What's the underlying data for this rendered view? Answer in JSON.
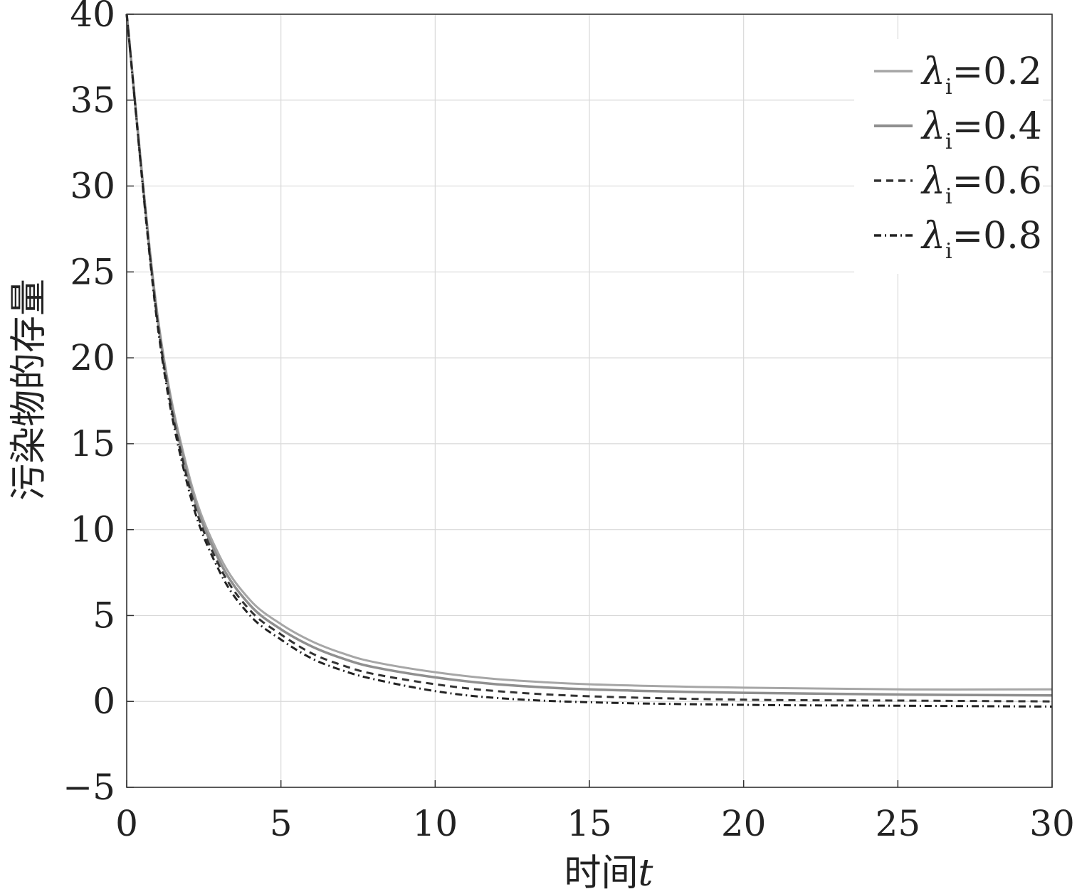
{
  "chart_data": {
    "type": "line",
    "xlabel_prefix": "时间",
    "xlabel_var": "t",
    "ylabel": "污染物的存量",
    "xlim": [
      0,
      30
    ],
    "ylim": [
      -5,
      40
    ],
    "xticks": [
      0,
      5,
      10,
      15,
      20,
      25,
      30
    ],
    "yticks": [
      -5,
      0,
      5,
      10,
      15,
      20,
      25,
      30,
      35,
      40
    ],
    "xtick_labels": [
      "0",
      "5",
      "10",
      "15",
      "20",
      "25",
      "30"
    ],
    "ytick_labels": [
      "−5",
      "0",
      "5",
      "10",
      "15",
      "20",
      "25",
      "30",
      "35",
      "40"
    ],
    "grid": true,
    "legend_position": "top-right",
    "x": [
      0,
      1,
      2,
      3,
      4,
      5,
      6,
      7,
      8,
      10,
      12,
      15,
      20,
      25,
      30
    ],
    "series": [
      {
        "name": "λi=0.2",
        "symbol": "λ",
        "subscript": "i",
        "value_text": "=0.2",
        "color": "#a6a6a6",
        "dash": "",
        "width": 3,
        "values": [
          40,
          22.5,
          13.3,
          8.5,
          5.9,
          4.5,
          3.5,
          2.8,
          2.3,
          1.7,
          1.3,
          1.0,
          0.8,
          0.7,
          0.7
        ]
      },
      {
        "name": "λi=0.4",
        "symbol": "λ",
        "subscript": "i",
        "value_text": "=0.4",
        "color": "#8f8f8f",
        "dash": "",
        "width": 3.5,
        "values": [
          40,
          22.3,
          13.0,
          8.2,
          5.6,
          4.2,
          3.2,
          2.5,
          2.0,
          1.4,
          1.0,
          0.7,
          0.5,
          0.4,
          0.35
        ]
      },
      {
        "name": "λi=0.6",
        "symbol": "λ",
        "subscript": "i",
        "value_text": "=0.6",
        "color": "#333333",
        "dash": "10,7",
        "width": 3,
        "values": [
          40,
          22.1,
          12.7,
          7.9,
          5.3,
          3.9,
          2.8,
          2.1,
          1.6,
          1.0,
          0.6,
          0.3,
          0.1,
          0.05,
          0.0
        ]
      },
      {
        "name": "λi=0.8",
        "symbol": "λ",
        "subscript": "i",
        "value_text": "=0.8",
        "color": "#222222",
        "dash": "10,5,2,5",
        "width": 3,
        "values": [
          40,
          21.9,
          12.4,
          7.6,
          5.0,
          3.6,
          2.5,
          1.8,
          1.3,
          0.6,
          0.2,
          -0.05,
          -0.2,
          -0.25,
          -0.3
        ]
      }
    ]
  }
}
